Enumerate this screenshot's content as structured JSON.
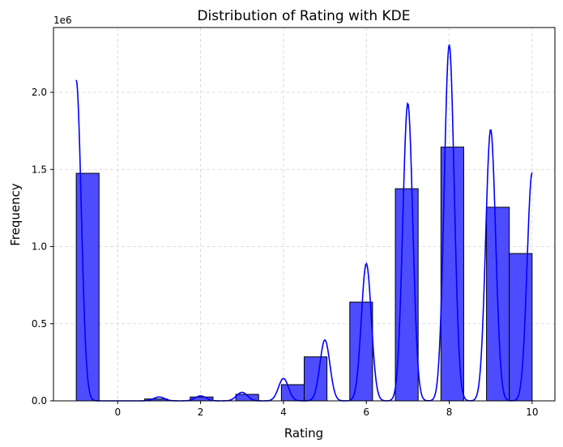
{
  "chart_data": {
    "type": "bar",
    "title": "Distribution of Rating with KDE",
    "xlabel": "Rating",
    "ylabel": "Frequency",
    "y_offset_label": "1e6",
    "xlim": [
      -1.55,
      10.55
    ],
    "ylim": [
      0,
      2420000
    ],
    "x_ticks": [
      0,
      2,
      4,
      6,
      8,
      10
    ],
    "y_ticks": [
      0,
      500000,
      1000000,
      1500000,
      2000000
    ],
    "y_tick_labels": [
      "0.0",
      "0.5",
      "1.0",
      "1.5",
      "2.0"
    ],
    "grid": true,
    "bins": [
      {
        "x0": -1.0,
        "x1": -0.45,
        "count": 1475000
      },
      {
        "x0": -0.45,
        "x1": 0.1,
        "count": 0
      },
      {
        "x0": 0.1,
        "x1": 0.65,
        "count": 0
      },
      {
        "x0": 0.65,
        "x1": 1.2,
        "count": 12000
      },
      {
        "x0": 1.2,
        "x1": 1.75,
        "count": 0
      },
      {
        "x0": 1.75,
        "x1": 2.3,
        "count": 25000
      },
      {
        "x0": 2.3,
        "x1": 2.85,
        "count": 0
      },
      {
        "x0": 2.85,
        "x1": 3.4,
        "count": 42000
      },
      {
        "x0": 3.4,
        "x1": 3.95,
        "count": 0
      },
      {
        "x0": 3.95,
        "x1": 4.5,
        "count": 105000
      },
      {
        "x0": 4.5,
        "x1": 5.05,
        "count": 285000
      },
      {
        "x0": 5.05,
        "x1": 5.6,
        "count": 0
      },
      {
        "x0": 5.6,
        "x1": 6.15,
        "count": 640000
      },
      {
        "x0": 6.15,
        "x1": 6.7,
        "count": 0
      },
      {
        "x0": 6.7,
        "x1": 7.25,
        "count": 1375000
      },
      {
        "x0": 7.25,
        "x1": 7.8,
        "count": 0
      },
      {
        "x0": 7.8,
        "x1": 8.35,
        "count": 1645000
      },
      {
        "x0": 8.35,
        "x1": 8.9,
        "count": 0
      },
      {
        "x0": 8.9,
        "x1": 9.45,
        "count": 1255000
      },
      {
        "x0": 9.45,
        "x1": 10.0,
        "count": 955000
      }
    ],
    "kde_peaks": [
      {
        "x": -1.0,
        "y": 2080000,
        "sigma": 0.12
      },
      {
        "x": 1.0,
        "y": 25000,
        "sigma": 0.13
      },
      {
        "x": 2.0,
        "y": 32000,
        "sigma": 0.13
      },
      {
        "x": 3.0,
        "y": 55000,
        "sigma": 0.13
      },
      {
        "x": 4.0,
        "y": 145000,
        "sigma": 0.12
      },
      {
        "x": 5.0,
        "y": 395000,
        "sigma": 0.12
      },
      {
        "x": 6.0,
        "y": 890000,
        "sigma": 0.12
      },
      {
        "x": 7.0,
        "y": 1930000,
        "sigma": 0.12
      },
      {
        "x": 8.0,
        "y": 2310000,
        "sigma": 0.12
      },
      {
        "x": 9.0,
        "y": 1760000,
        "sigma": 0.12
      },
      {
        "x": 10.0,
        "y": 1480000,
        "sigma": 0.12
      }
    ],
    "colors": {
      "bar_fill": "#4d4dff",
      "bar_edge": "#000000",
      "kde_line": "#0000ff",
      "grid": "#d3d3d3"
    }
  }
}
